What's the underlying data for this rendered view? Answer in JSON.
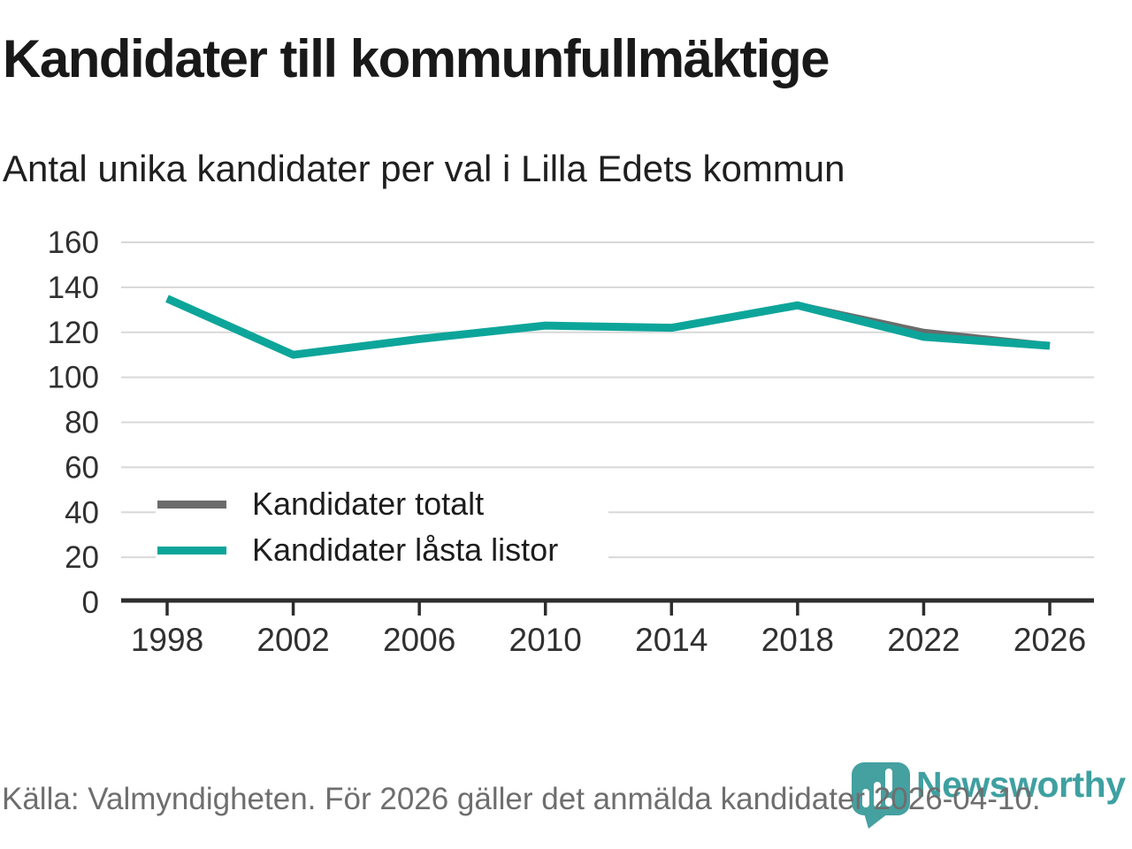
{
  "header": {
    "title": "Kandidater till kommunfullmäktige",
    "subtitle": "Antal unika kandidater per val i Lilla Edets kommun"
  },
  "chart_data": {
    "type": "line",
    "categories": [
      "1998",
      "2002",
      "2006",
      "2010",
      "2014",
      "2018",
      "2022",
      "2026"
    ],
    "series": [
      {
        "name": "Kandidater totalt",
        "color": "#6b6b6b",
        "values": [
          135,
          110,
          117,
          123,
          122,
          132,
          120,
          114
        ]
      },
      {
        "name": "Kandidater låsta listor",
        "color": "#0da59a",
        "values": [
          135,
          110,
          117,
          123,
          122,
          132,
          118,
          114
        ]
      }
    ],
    "xlabel": "",
    "ylabel": "",
    "ylim": [
      0,
      160
    ],
    "ytick_step": 20,
    "grid": "horizontal",
    "gridline_color": "#d8d8d8",
    "axis_color": "#2d2d2d",
    "tick_label_color": "#303030",
    "legend_position": "inside-left-middle"
  },
  "footer": {
    "source_note": "Källa: Valmyndigheten. För 2026 gäller det anmälda kandidater 2026-04-10."
  },
  "branding": {
    "logo_text": "Newsworthy",
    "logo_color": "#3fa0a1",
    "logo_icon": "bar-chart-speech-bubble-icon"
  }
}
